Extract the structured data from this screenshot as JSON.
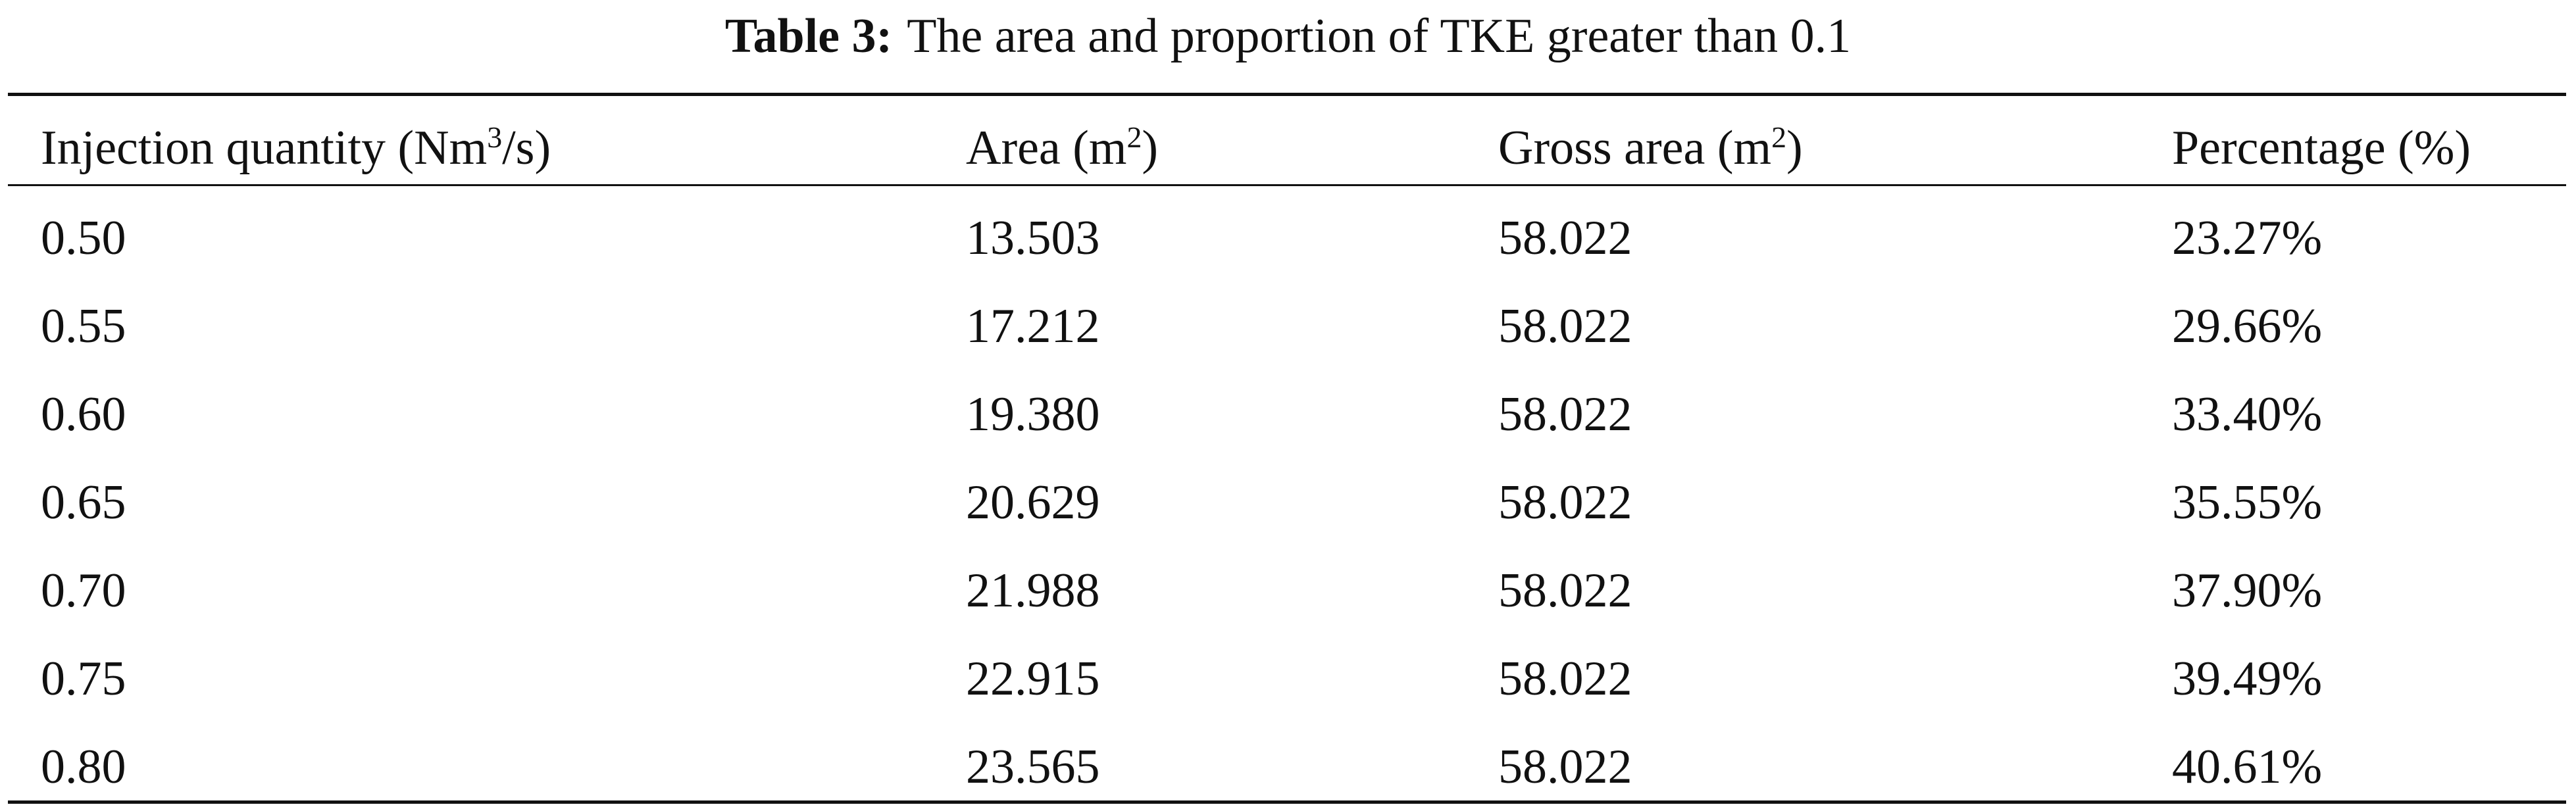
{
  "caption": {
    "label": "Table 3:",
    "text": "The area and proportion of TKE greater than 0.1"
  },
  "table": {
    "header": [
      {
        "text": "Injection quantity (Nm",
        "sup": "3",
        "after": "/s)"
      },
      {
        "text": "Area (m",
        "sup": "2",
        "after": ")"
      },
      {
        "text": "Gross area (m",
        "sup": "2",
        "after": ")"
      },
      {
        "text": "Percentage (%)"
      }
    ],
    "rows": [
      [
        "0.50",
        "13.503",
        "58.022",
        "23.27%"
      ],
      [
        "0.55",
        "17.212",
        "58.022",
        "29.66%"
      ],
      [
        "0.60",
        "19.380",
        "58.022",
        "33.40%"
      ],
      [
        "0.65",
        "20.629",
        "58.022",
        "35.55%"
      ],
      [
        "0.70",
        "21.988",
        "58.022",
        "37.90%"
      ],
      [
        "0.75",
        "22.915",
        "58.022",
        "39.49%"
      ],
      [
        "0.80",
        "23.565",
        "58.022",
        "40.61%"
      ]
    ]
  }
}
